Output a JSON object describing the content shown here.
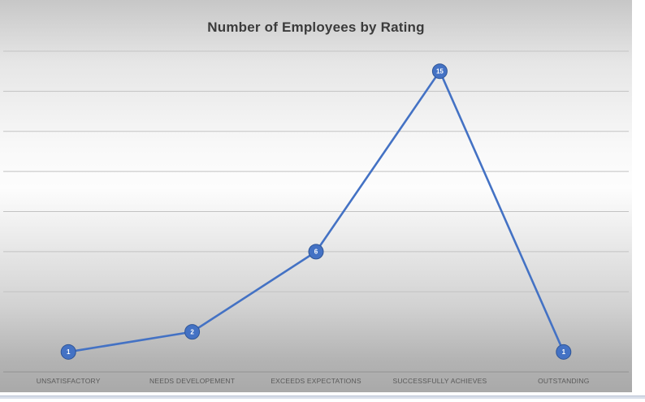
{
  "chart_data": {
    "type": "line",
    "title": "Number of Employees by Rating",
    "categories": [
      "UNSATISFACTORY",
      "NEEDS DEVELOPEMENT",
      "EXCEEDS EXPECTATIONS",
      "SUCCESSFULLY ACHIEVES",
      "OUTSTANDING"
    ],
    "values": [
      1,
      2,
      6,
      15,
      1
    ],
    "data_labels": [
      "1",
      "2",
      "6",
      "15",
      "1"
    ],
    "xlabel": "",
    "ylabel": "",
    "ylim": [
      0,
      16
    ],
    "gridline_interval": 2,
    "grid": true,
    "legend_position": "none",
    "marker_style": "circle-with-value",
    "colors": {
      "line": "#4472c4",
      "marker_fill": "#4472c4",
      "marker_stroke": "#2f5597",
      "data_label_text": "#ffffff",
      "gridline": "#c3c3c3",
      "axis_line": "#999999",
      "category_label": "#595959",
      "title_text": "#3b3b3b"
    }
  }
}
